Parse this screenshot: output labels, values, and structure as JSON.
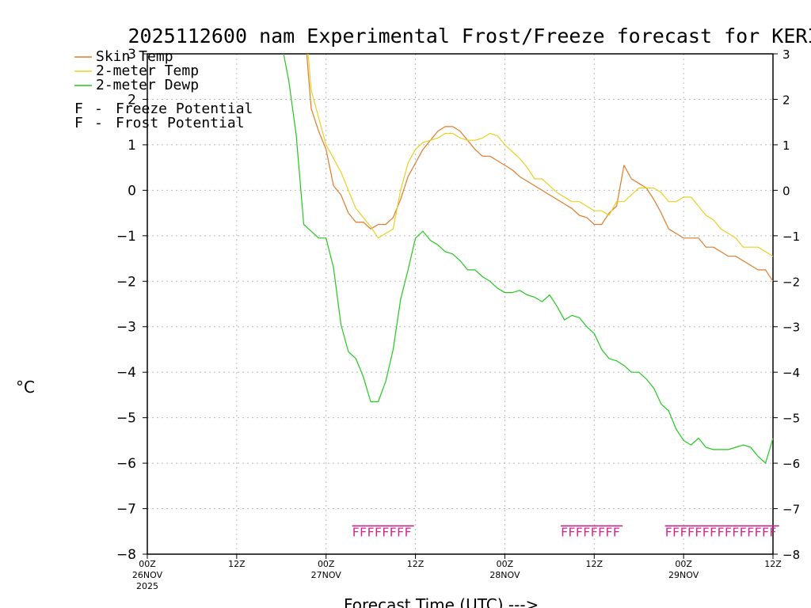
{
  "chart_data": {
    "type": "line",
    "title": "2025112600 nam Experimental Frost/Freeze forecast for KERI",
    "ylabel": "°C",
    "xlabel": "Forecast Time (UTC) --->",
    "ylim": [
      -8,
      3
    ],
    "xlim": [
      0,
      84
    ],
    "yticks": [
      -8,
      -7,
      -6,
      -5,
      -4,
      -3,
      -2,
      -1,
      0,
      1,
      2,
      3
    ],
    "xticks": [
      {
        "hour": 0,
        "label": "00Z",
        "date": "26NOV",
        "year": "2025"
      },
      {
        "hour": 12,
        "label": "12Z",
        "date": "",
        "year": ""
      },
      {
        "hour": 24,
        "label": "00Z",
        "date": "27NOV",
        "year": ""
      },
      {
        "hour": 36,
        "label": "12Z",
        "date": "",
        "year": ""
      },
      {
        "hour": 48,
        "label": "00Z",
        "date": "28NOV",
        "year": ""
      },
      {
        "hour": 60,
        "label": "12Z",
        "date": "",
        "year": ""
      },
      {
        "hour": 72,
        "label": "00Z",
        "date": "29NOV",
        "year": ""
      },
      {
        "hour": 84,
        "label": "12Z",
        "date": "",
        "year": ""
      }
    ],
    "grid": true,
    "legend": [
      {
        "label": "Skin Temp",
        "color": "#e07b2a"
      },
      {
        "label": "2-meter Temp",
        "color": "#e8d020"
      },
      {
        "label": "2-meter Dewp",
        "color": "#22c81e"
      }
    ],
    "legend2": [
      {
        "label": "Freeze Potential",
        "letter": "F",
        "sep": "-",
        "color": "#d61e8c"
      },
      {
        "label": "Frost Potential",
        "letter": "F",
        "sep": "-",
        "color": "#4a5ad6"
      }
    ],
    "series": [
      {
        "name": "Skin Temp",
        "color": "#e07b2a",
        "x": [
          21.4,
          22,
          23,
          24,
          25,
          26,
          27,
          28,
          29,
          30,
          31,
          32,
          33,
          34,
          35,
          36,
          37,
          38,
          39,
          40,
          41,
          42,
          43,
          44,
          45,
          46,
          47,
          48,
          49,
          50,
          51,
          52,
          53,
          54,
          55,
          56,
          57,
          58,
          59,
          60,
          61,
          62,
          63,
          64,
          65,
          66,
          67,
          68,
          69,
          70,
          71,
          72,
          73,
          74,
          75,
          76,
          77,
          78,
          79,
          80,
          81,
          82,
          83,
          84
        ],
        "y": [
          3.0,
          1.8,
          1.3,
          0.9,
          0.1,
          -0.1,
          -0.5,
          -0.7,
          -0.7,
          -0.85,
          -0.75,
          -0.75,
          -0.6,
          -0.2,
          0.3,
          0.6,
          0.9,
          1.1,
          1.3,
          1.4,
          1.4,
          1.3,
          1.1,
          0.9,
          0.75,
          0.75,
          0.65,
          0.55,
          0.45,
          0.3,
          0.2,
          0.1,
          0.0,
          -0.1,
          -0.2,
          -0.3,
          -0.4,
          -0.55,
          -0.6,
          -0.75,
          -0.75,
          -0.5,
          -0.35,
          0.55,
          0.25,
          0.15,
          0.05,
          -0.2,
          -0.5,
          -0.85,
          -0.95,
          -1.05,
          -1.05,
          -1.05,
          -1.25,
          -1.25,
          -1.35,
          -1.45,
          -1.45,
          -1.55,
          -1.65,
          -1.75,
          -1.75,
          -2.0
        ]
      },
      {
        "name": "2-meter Temp",
        "color": "#e8d020",
        "x": [
          21.6,
          22,
          23,
          24,
          25,
          26,
          27,
          28,
          29,
          30,
          31,
          32,
          33,
          34,
          35,
          36,
          37,
          38,
          39,
          40,
          41,
          42,
          43,
          44,
          45,
          46,
          47,
          48,
          49,
          50,
          51,
          52,
          53,
          54,
          55,
          56,
          57,
          58,
          59,
          60,
          61,
          62,
          63,
          64,
          65,
          66,
          67,
          68,
          69,
          70,
          71,
          72,
          73,
          74,
          75,
          76,
          77,
          78,
          79,
          80,
          81,
          82,
          83,
          84
        ],
        "y": [
          3.0,
          2.2,
          1.6,
          1.0,
          0.7,
          0.4,
          0.0,
          -0.4,
          -0.6,
          -0.8,
          -1.05,
          -0.95,
          -0.85,
          0.0,
          0.6,
          0.9,
          1.05,
          1.1,
          1.15,
          1.25,
          1.25,
          1.15,
          1.1,
          1.1,
          1.15,
          1.25,
          1.2,
          1.0,
          0.85,
          0.7,
          0.5,
          0.25,
          0.25,
          0.1,
          -0.05,
          -0.15,
          -0.25,
          -0.25,
          -0.35,
          -0.45,
          -0.45,
          -0.55,
          -0.25,
          -0.25,
          -0.1,
          0.05,
          0.05,
          0.05,
          -0.05,
          -0.25,
          -0.25,
          -0.15,
          -0.15,
          -0.35,
          -0.55,
          -0.65,
          -0.85,
          -0.95,
          -1.05,
          -1.25,
          -1.25,
          -1.25,
          -1.35,
          -1.45
        ]
      },
      {
        "name": "2-meter Dewp",
        "color": "#22c81e",
        "x": [
          18.3,
          19,
          20,
          21,
          22,
          23,
          24,
          25,
          26,
          27,
          28,
          29,
          30,
          31,
          32,
          33,
          34,
          35,
          36,
          37,
          38,
          39,
          40,
          41,
          42,
          43,
          44,
          45,
          46,
          47,
          48,
          49,
          50,
          51,
          52,
          53,
          54,
          55,
          56,
          57,
          58,
          59,
          60,
          61,
          62,
          63,
          64,
          65,
          66,
          67,
          68,
          69,
          70,
          71,
          72,
          73,
          74,
          75,
          76,
          77,
          78,
          79,
          80,
          81,
          82,
          83,
          84
        ],
        "y": [
          3.0,
          2.4,
          1.2,
          -0.75,
          -0.9,
          -1.05,
          -1.05,
          -1.7,
          -2.95,
          -3.55,
          -3.7,
          -4.1,
          -4.65,
          -4.65,
          -4.2,
          -3.5,
          -2.4,
          -1.75,
          -1.05,
          -0.9,
          -1.1,
          -1.2,
          -1.35,
          -1.4,
          -1.55,
          -1.75,
          -1.75,
          -1.9,
          -2.0,
          -2.15,
          -2.25,
          -2.25,
          -2.2,
          -2.3,
          -2.35,
          -2.45,
          -2.3,
          -2.55,
          -2.85,
          -2.75,
          -2.8,
          -3.0,
          -3.15,
          -3.5,
          -3.7,
          -3.75,
          -3.85,
          -4.0,
          -4.0,
          -4.15,
          -4.35,
          -4.7,
          -4.85,
          -5.25,
          -5.5,
          -5.6,
          -5.45,
          -5.65,
          -5.7,
          -5.7,
          -5.7,
          -5.65,
          -5.6,
          -5.65,
          -5.85,
          -6.0,
          -5.45
        ]
      }
    ],
    "freeze_potential": [
      {
        "start": 27.5,
        "count": 8
      },
      {
        "start": 55.5,
        "count": 8
      },
      {
        "start": 69.5,
        "count": 15
      }
    ]
  }
}
